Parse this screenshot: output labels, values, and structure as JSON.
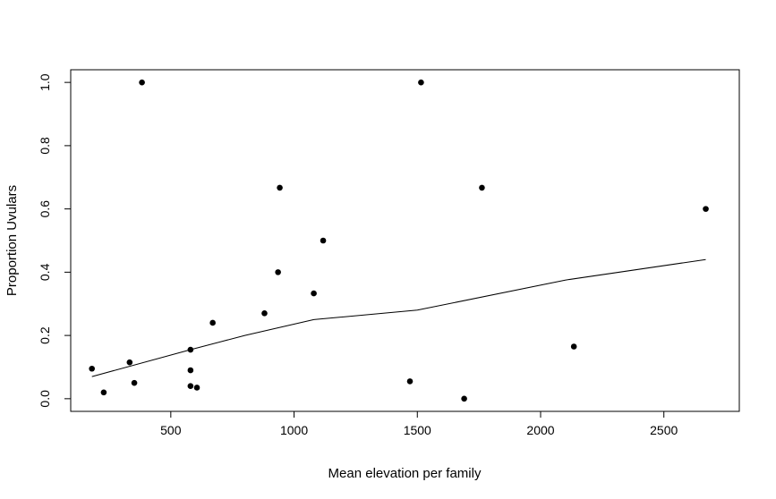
{
  "chart_data": {
    "type": "scatter",
    "xlabel": "Mean elevation per family",
    "ylabel": "Proportion Uvulars",
    "xlim": [
      94,
      2806
    ],
    "ylim": [
      -0.04,
      1.04
    ],
    "x_ticks": [
      500,
      1000,
      1500,
      2000,
      2500
    ],
    "y_ticks": [
      0.0,
      0.2,
      0.4,
      0.6,
      0.8,
      1.0
    ],
    "x_tick_labels": [
      "500",
      "1000",
      "1500",
      "2000",
      "2500"
    ],
    "y_tick_labels": [
      "0.0",
      "0.2",
      "0.4",
      "0.6",
      "0.8",
      "1.0"
    ],
    "grid": false,
    "points": [
      {
        "x": 180,
        "y": 0.095
      },
      {
        "x": 228,
        "y": 0.02
      },
      {
        "x": 333,
        "y": 0.115
      },
      {
        "x": 352,
        "y": 0.05
      },
      {
        "x": 383,
        "y": 1.0
      },
      {
        "x": 580,
        "y": 0.155
      },
      {
        "x": 580,
        "y": 0.09
      },
      {
        "x": 580,
        "y": 0.04
      },
      {
        "x": 606,
        "y": 0.035
      },
      {
        "x": 670,
        "y": 0.24
      },
      {
        "x": 880,
        "y": 0.27
      },
      {
        "x": 935,
        "y": 0.4
      },
      {
        "x": 942,
        "y": 0.667
      },
      {
        "x": 1080,
        "y": 0.333
      },
      {
        "x": 1118,
        "y": 0.5
      },
      {
        "x": 1470,
        "y": 0.055
      },
      {
        "x": 1515,
        "y": 1.0
      },
      {
        "x": 1690,
        "y": 0.0
      },
      {
        "x": 1762,
        "y": 0.667
      },
      {
        "x": 2135,
        "y": 0.165
      },
      {
        "x": 2670,
        "y": 0.6
      }
    ],
    "smooth_line": [
      {
        "x": 180,
        "y": 0.07
      },
      {
        "x": 580,
        "y": 0.155
      },
      {
        "x": 800,
        "y": 0.2
      },
      {
        "x": 1080,
        "y": 0.25
      },
      {
        "x": 1500,
        "y": 0.28
      },
      {
        "x": 2100,
        "y": 0.375
      },
      {
        "x": 2670,
        "y": 0.44
      }
    ]
  }
}
